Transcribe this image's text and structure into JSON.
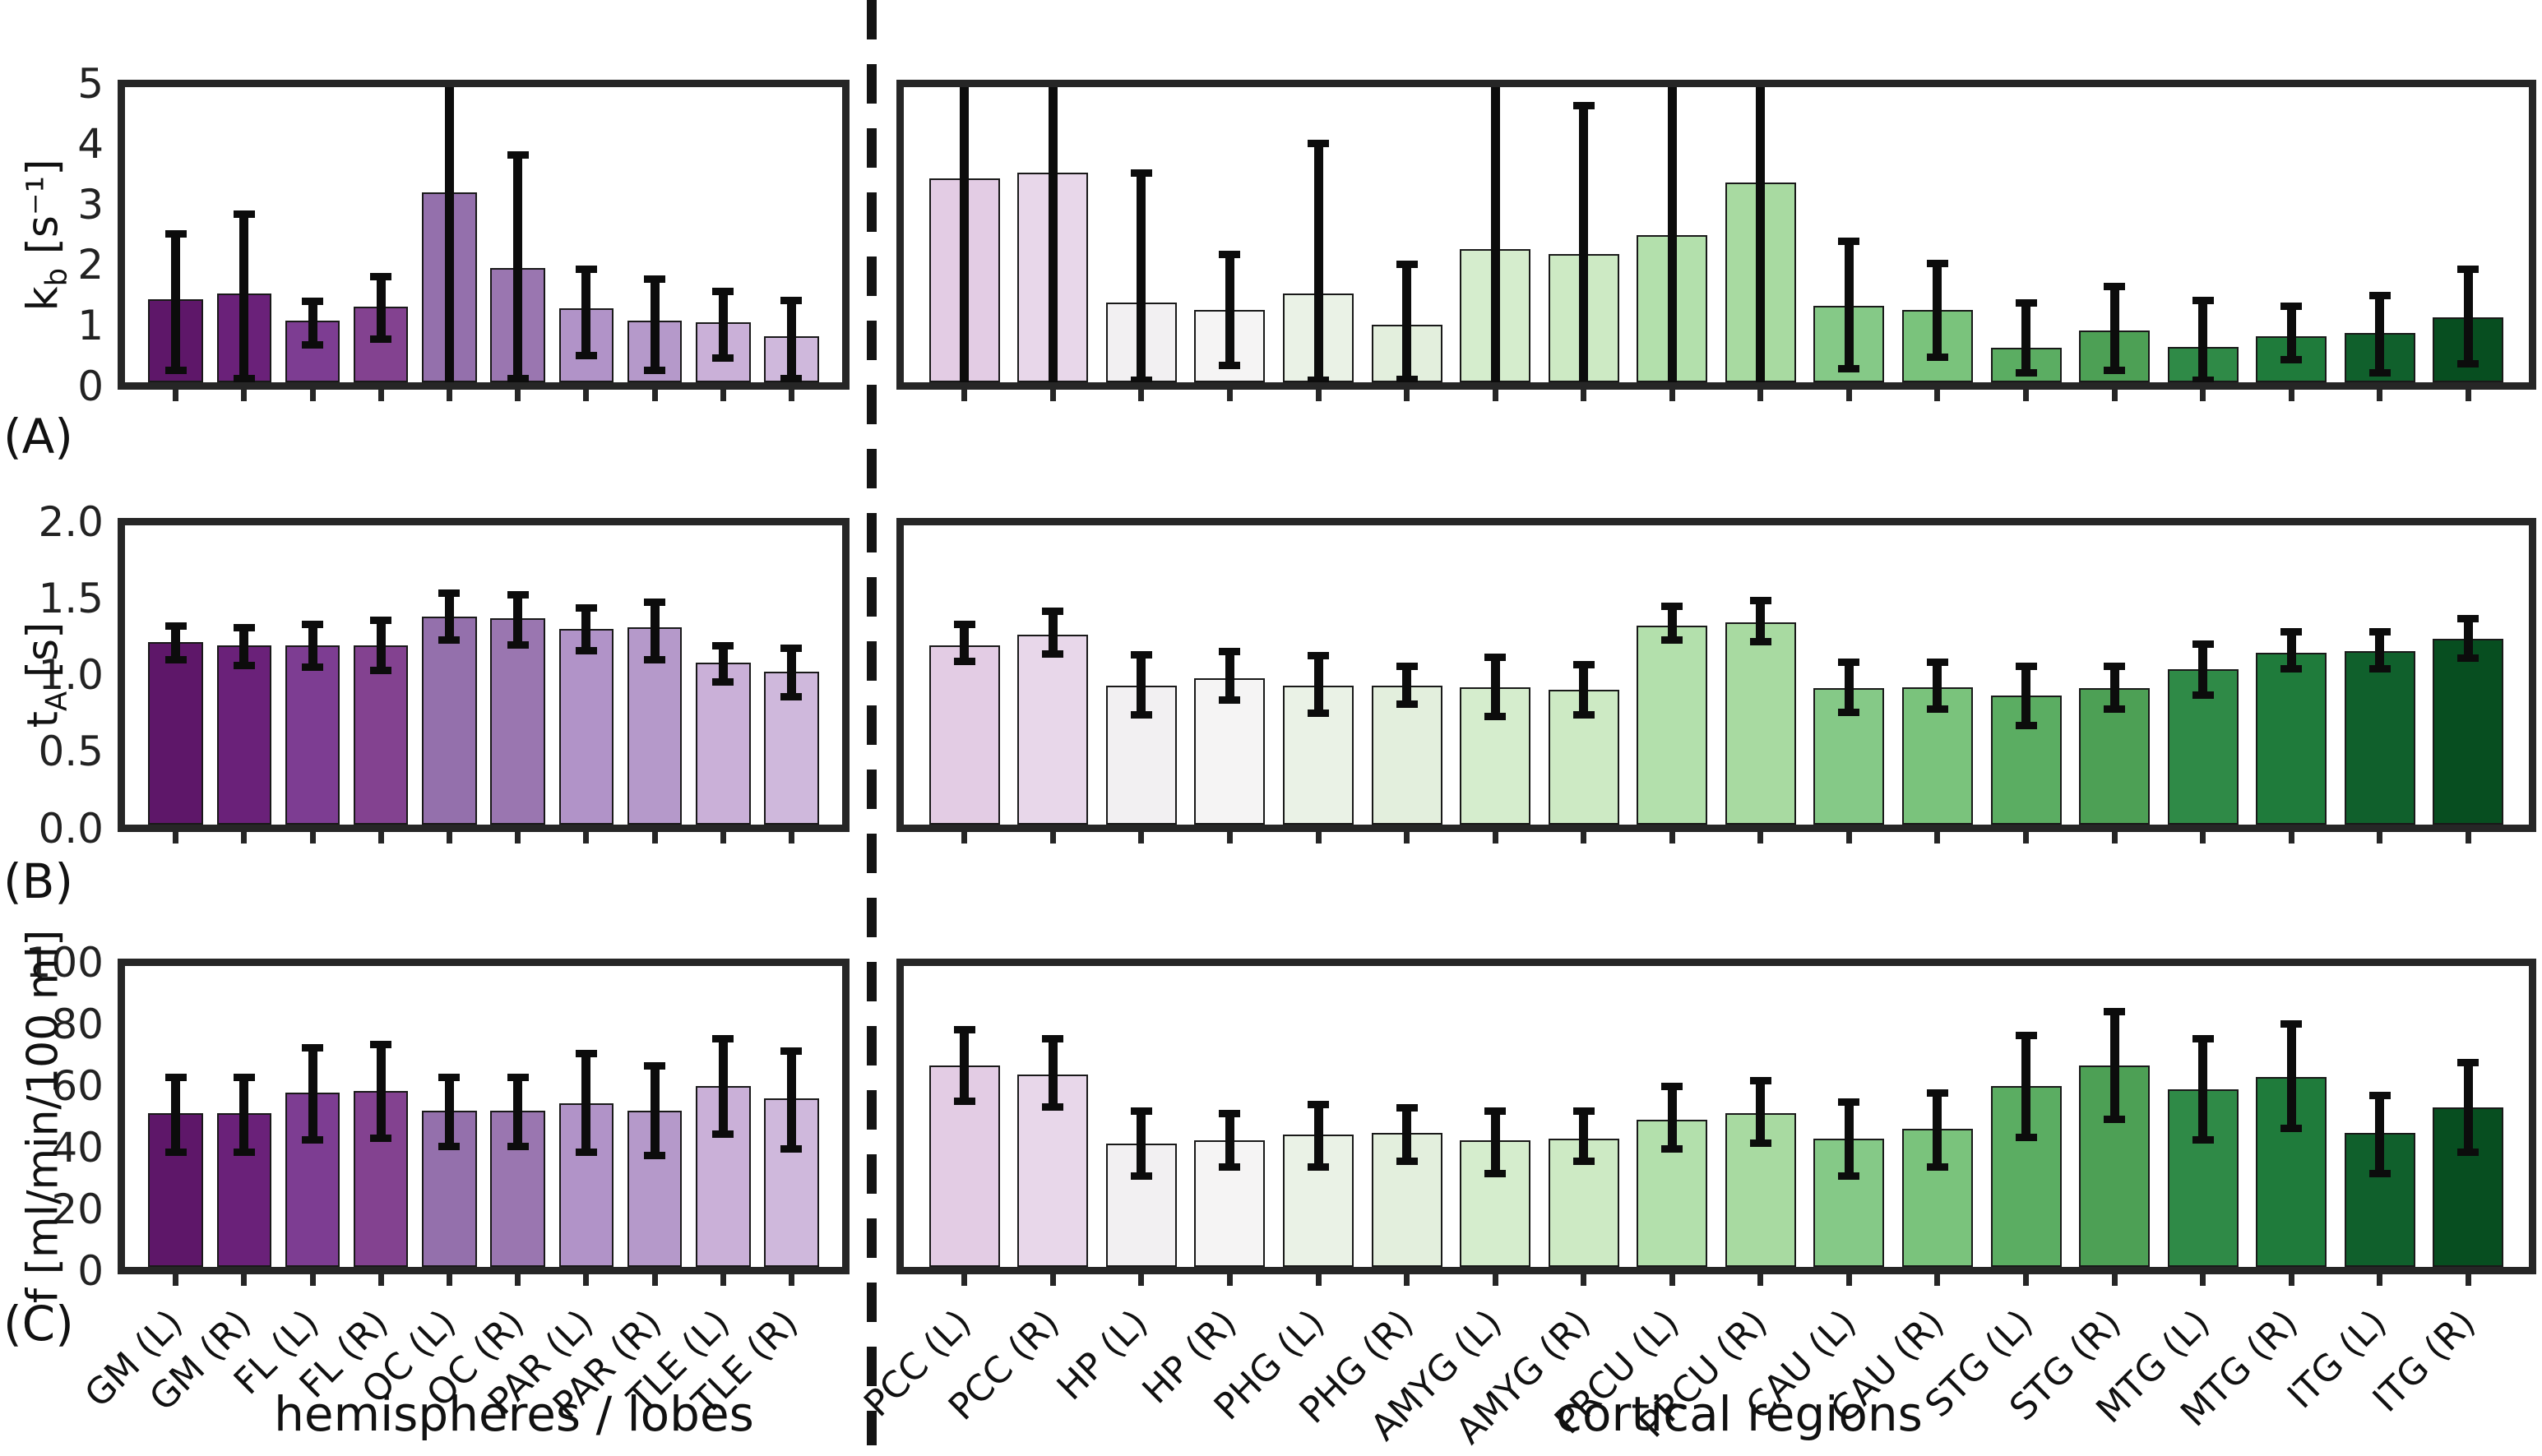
{
  "figure": {
    "divider_style": "vertical-dashed-line",
    "background": "#ffffff",
    "frame_color": "#262626",
    "errorbar_color": "#0c0c0c"
  },
  "chart_data": {
    "type": "bar",
    "grid": false,
    "legend": null,
    "note": "Three stacked bar panels (A,B,C); error bars exceeding the y-axis limits are clipped at the panel frame.",
    "group_titles": [
      "hemispheres / lobes",
      "cortical regions"
    ],
    "categories_left": [
      "GM (L)",
      "GM (R)",
      "FL (L)",
      "FL (R)",
      "OC (L)",
      "OC (R)",
      "PAR (L)",
      "PAR (R)",
      "TLE (L)",
      "TLE (R)"
    ],
    "categories_right": [
      "PCC (L)",
      "PCC (R)",
      "HP (L)",
      "HP (R)",
      "PHG (L)",
      "PHG (R)",
      "AMYG (L)",
      "AMYG (R)",
      "PRCU (L)",
      "PRCU (R)",
      "CAU (L)",
      "CAU (R)",
      "STG (L)",
      "STG (R)",
      "MTG (L)",
      "MTG (R)",
      "ITG (L)",
      "ITG (R)"
    ],
    "bar_colors_left": [
      "#5e1769",
      "#6a2179",
      "#7d3d92",
      "#834290",
      "#9470ac",
      "#9a76b0",
      "#b193c8",
      "#b599ca",
      "#cab0d8",
      "#cfb8dc"
    ],
    "bar_colors_right": [
      "#e3cce4",
      "#e8d7ea",
      "#f2f0f2",
      "#f5f4f4",
      "#eaf2e6",
      "#e3efdd",
      "#d5edcd",
      "#cdeac4",
      "#b3e0ac",
      "#a8daa1",
      "#85c987",
      "#7ac37c",
      "#5bad62",
      "#4da055",
      "#2f8a47",
      "#1f7b3b",
      "#10602c",
      "#074e20"
    ],
    "rows": [
      {
        "panel_label": "(A)",
        "ylabel": "k_b [s^-1]",
        "ylabel_parts": {
          "sym": "k",
          "sub": "b",
          "unit": "[s⁻¹]"
        },
        "ylim": [
          0,
          5
        ],
        "yticks": [
          "0",
          "1",
          "2",
          "3",
          "4",
          "5"
        ],
        "left": {
          "values": [
            1.4,
            1.5,
            1.05,
            1.28,
            3.22,
            1.93,
            1.26,
            1.04,
            1.02,
            0.78
          ],
          "err_low": [
            0.2,
            0.05,
            0.62,
            0.73,
            -0.05,
            0.05,
            0.45,
            0.2,
            0.4,
            0.05
          ],
          "err_high": [
            2.52,
            2.86,
            1.38,
            1.8,
            5.3,
            3.86,
            1.92,
            1.75,
            1.55,
            1.4
          ]
        },
        "right": {
          "values": [
            3.45,
            3.55,
            1.35,
            1.22,
            1.5,
            0.97,
            2.25,
            2.17,
            2.5,
            3.38,
            1.3,
            1.23,
            0.58,
            0.88,
            0.6,
            0.78,
            0.84,
            1.1
          ],
          "err_low": [
            -0.05,
            -0.05,
            0.03,
            0.28,
            0.03,
            0.04,
            -0.05,
            0.02,
            -0.05,
            -0.05,
            0.22,
            0.42,
            0.15,
            0.2,
            0.03,
            0.38,
            0.15,
            0.3
          ],
          "err_high": [
            5.3,
            5.3,
            3.55,
            2.18,
            4.05,
            2.0,
            5.3,
            4.7,
            5.3,
            5.3,
            2.4,
            2.02,
            1.35,
            1.63,
            1.4,
            1.3,
            1.48,
            1.92
          ]
        }
      },
      {
        "panel_label": "(B)",
        "ylabel": "t_A [s]",
        "ylabel_parts": {
          "sym": "t",
          "sub": "A",
          "unit": "[s]"
        },
        "ylim": [
          0,
          2.0
        ],
        "yticks": [
          "0.0",
          "0.5",
          "1.0",
          "1.5",
          "2.0"
        ],
        "left": {
          "values": [
            1.22,
            1.2,
            1.2,
            1.2,
            1.39,
            1.38,
            1.31,
            1.32,
            1.08,
            1.02
          ],
          "err_low": [
            1.1,
            1.06,
            1.05,
            1.03,
            1.23,
            1.2,
            1.16,
            1.1,
            0.95,
            0.85
          ],
          "err_high": [
            1.33,
            1.32,
            1.34,
            1.37,
            1.55,
            1.54,
            1.45,
            1.49,
            1.2,
            1.18
          ]
        },
        "right": {
          "values": [
            1.2,
            1.27,
            0.93,
            0.98,
            0.93,
            0.93,
            0.92,
            0.9,
            1.33,
            1.35,
            0.91,
            0.92,
            0.86,
            0.91,
            1.04,
            1.15,
            1.16,
            1.24
          ],
          "err_low": [
            1.09,
            1.14,
            0.73,
            0.83,
            0.74,
            0.8,
            0.72,
            0.73,
            1.23,
            1.22,
            0.75,
            0.77,
            0.66,
            0.77,
            0.86,
            1.04,
            1.04,
            1.11
          ],
          "err_high": [
            1.34,
            1.43,
            1.14,
            1.16,
            1.13,
            1.06,
            1.12,
            1.07,
            1.46,
            1.5,
            1.09,
            1.09,
            1.06,
            1.06,
            1.21,
            1.29,
            1.29,
            1.38
          ]
        }
      },
      {
        "panel_label": "(C)",
        "ylabel": "f [ml/min/100 ml]",
        "ylabel_parts": {
          "sym": "f",
          "sub": "",
          "unit": "[ml/min/100 ml]"
        },
        "ylim": [
          0,
          100
        ],
        "yticks": [
          "0",
          "20",
          "40",
          "60",
          "80",
          "100"
        ],
        "left": {
          "values": [
            51,
            51,
            58,
            58.5,
            52,
            52,
            54.5,
            52,
            60,
            56
          ],
          "err_low": [
            38,
            38,
            42,
            42.5,
            40,
            40,
            38,
            37,
            44,
            39
          ],
          "err_high": [
            63,
            63,
            73,
            74,
            63,
            63,
            71,
            67,
            76,
            72
          ]
        },
        "right": {
          "values": [
            67,
            64,
            41,
            42,
            44,
            44.5,
            42,
            42.5,
            49,
            51,
            42.5,
            46,
            60,
            67,
            59,
            63,
            44.5,
            53
          ],
          "err_low": [
            55,
            53,
            30,
            33,
            33,
            35,
            31,
            35,
            39,
            41,
            30,
            33,
            43,
            49,
            42,
            46,
            31,
            38
          ],
          "err_high": [
            79,
            76,
            52,
            51,
            54,
            53,
            52,
            52,
            60,
            62,
            55,
            58,
            77,
            85,
            76,
            81,
            57,
            68
          ]
        }
      }
    ]
  }
}
